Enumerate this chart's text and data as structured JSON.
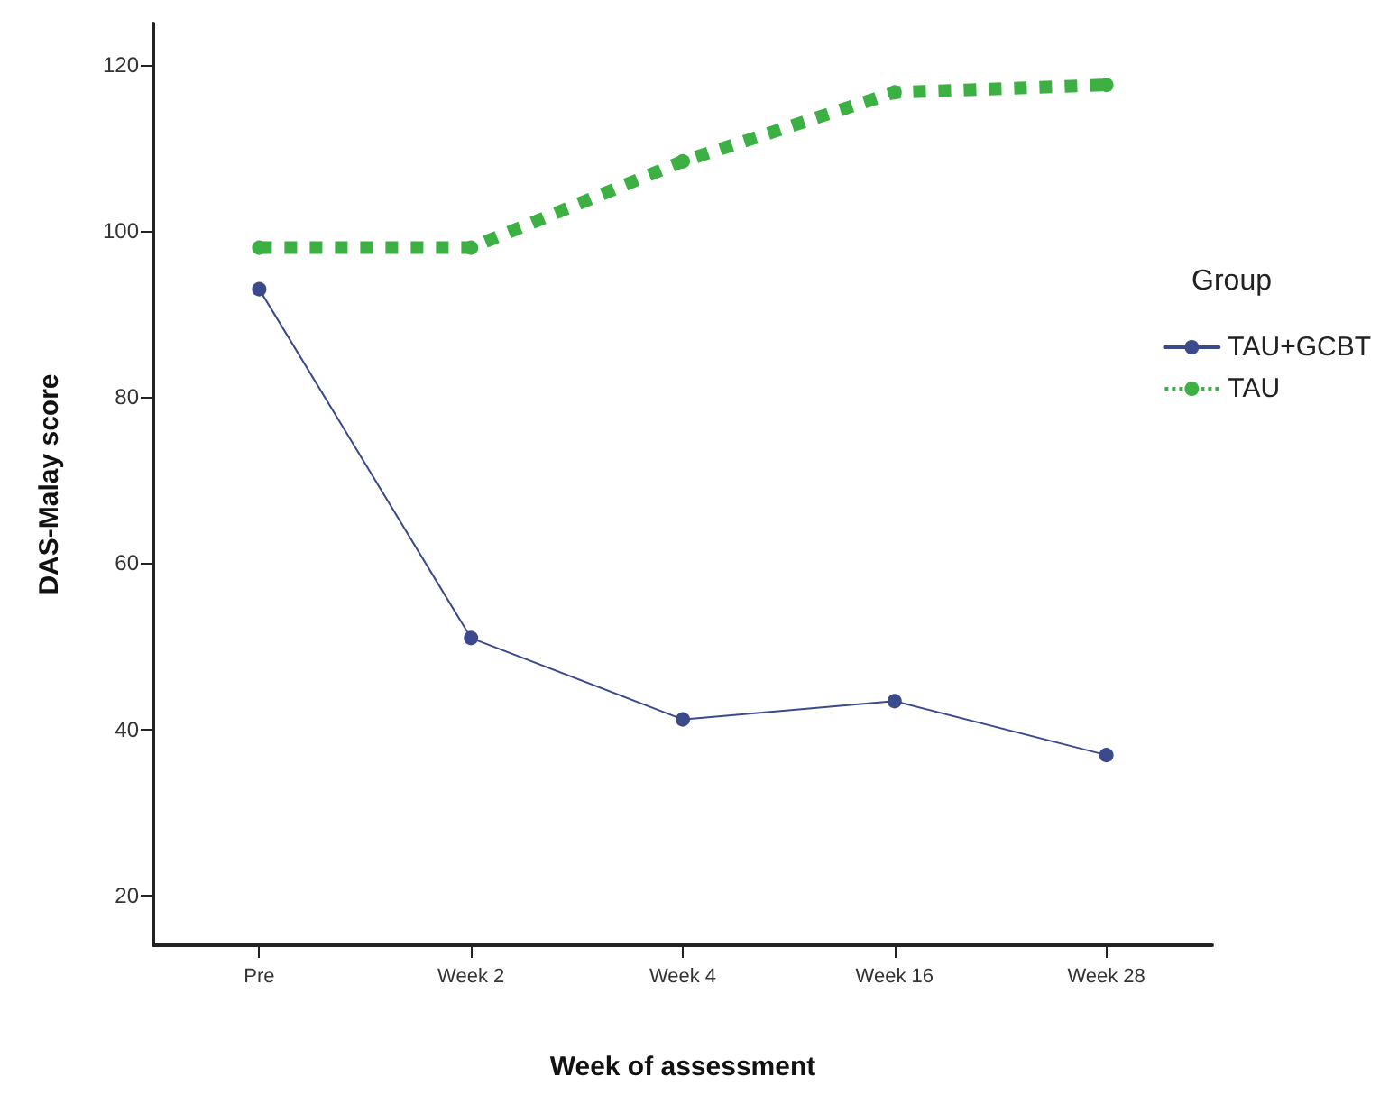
{
  "chart_data": {
    "type": "line",
    "xlabel": "Week of assessment",
    "ylabel": "DAS-Malay score",
    "legend_title": "Group",
    "categories": [
      "Pre",
      "Week 2",
      "Week 4",
      "Week 16",
      "Week 28"
    ],
    "series": [
      {
        "name": "TAU+GCBT",
        "color": "#3b4a8c",
        "values": [
          93.0,
          51.0,
          41.2,
          43.4,
          36.9
        ],
        "line_style": "solid"
      },
      {
        "name": "TAU",
        "color": "#3cb043",
        "values": [
          98.0,
          98.0,
          108.4,
          116.7,
          117.6
        ],
        "line_style": "dotted"
      }
    ],
    "ylim": [
      14,
      125
    ],
    "yticks": [
      20,
      40,
      60,
      80,
      100,
      120
    ],
    "grid": false,
    "legend": "right",
    "marker": "circle"
  }
}
